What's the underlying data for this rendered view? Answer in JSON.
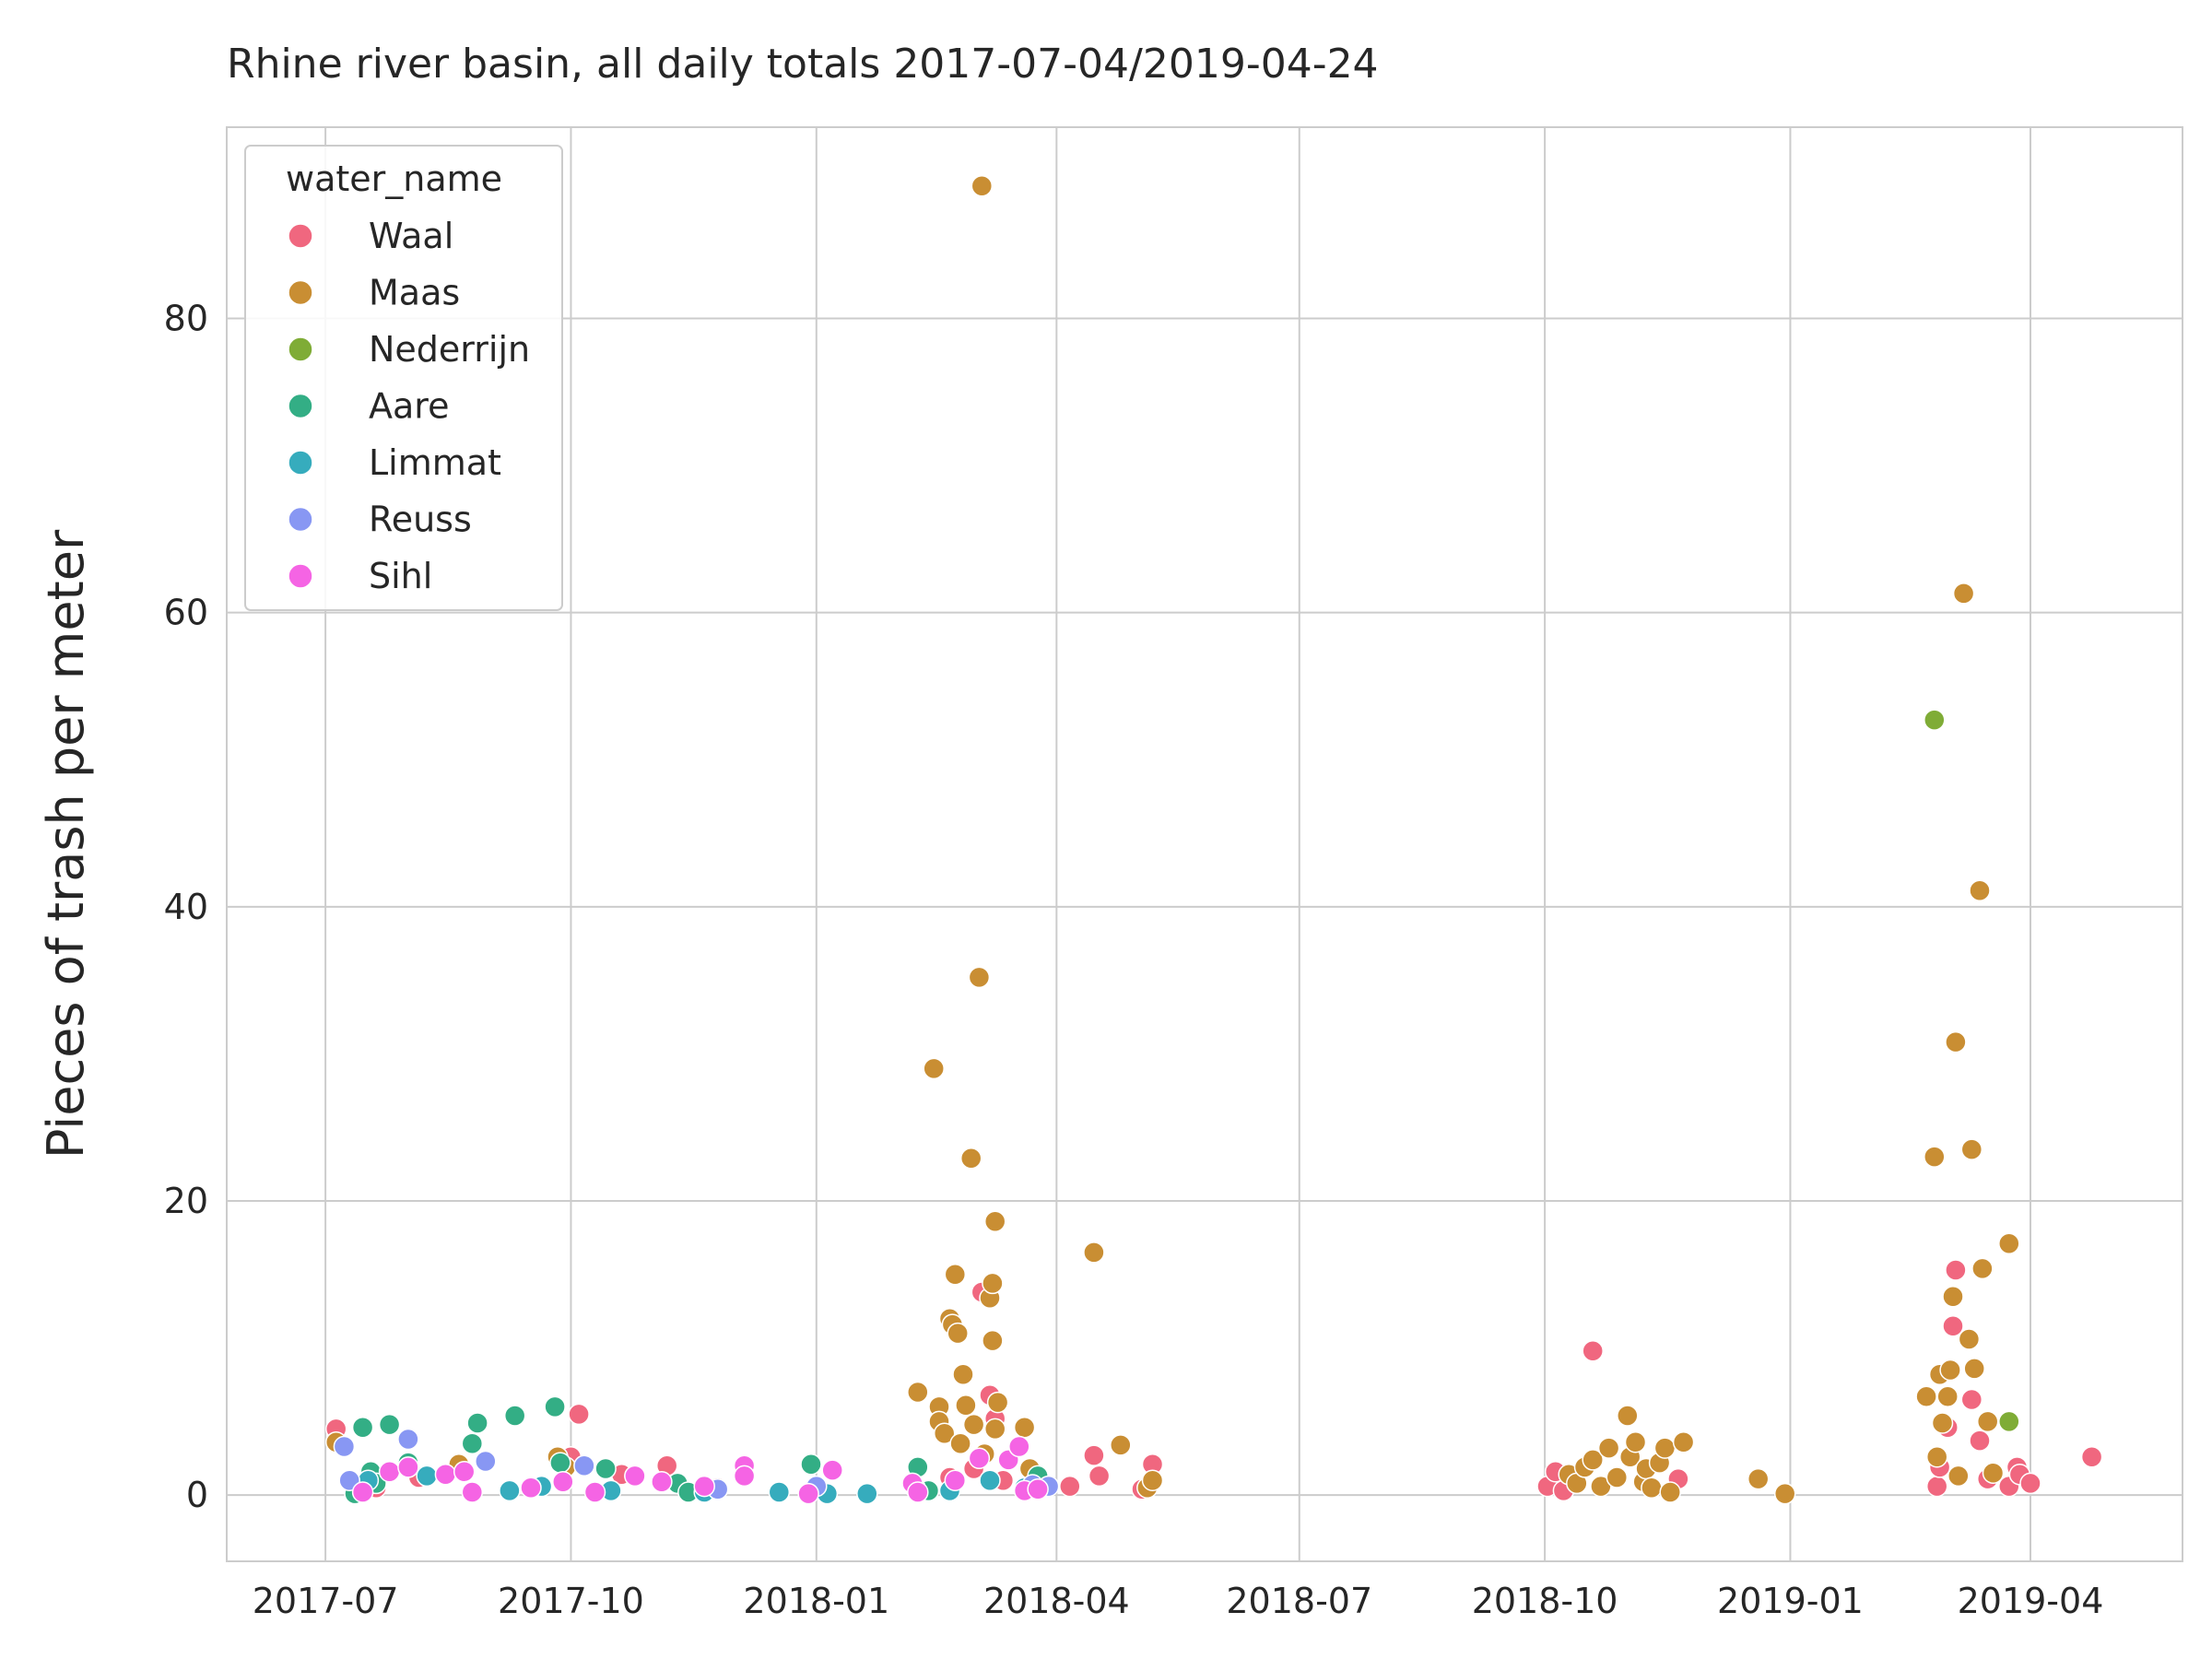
{
  "chart_data": {
    "type": "scatter",
    "title": "Rhine river basin, all daily totals 2017-07-04/2019-04-24",
    "xlabel": "",
    "ylabel": "Pieces of trash per meter",
    "x_scale": "date",
    "xlim": [
      "2017-05-25",
      "2019-05-28"
    ],
    "ylim": [
      -4.5,
      93
    ],
    "x_ticks": [
      "2017-07",
      "2017-10",
      "2018-01",
      "2018-04",
      "2018-07",
      "2018-10",
      "2019-01",
      "2019-04"
    ],
    "y_ticks": [
      0,
      20,
      40,
      60,
      80
    ],
    "grid": true,
    "legend": {
      "title": "water_name",
      "position": "top-left"
    },
    "series": [
      {
        "name": "Waal",
        "color": "#f0677f",
        "points": [
          [
            "2017-07-05",
            4.5
          ],
          [
            "2017-07-20",
            0.5
          ],
          [
            "2017-08-05",
            1.2
          ],
          [
            "2017-10-01",
            2.6
          ],
          [
            "2017-10-04",
            5.5
          ],
          [
            "2017-10-20",
            1.4
          ],
          [
            "2017-11-06",
            2.0
          ],
          [
            "2017-11-25",
            0.5
          ],
          [
            "2018-02-20",
            1.2
          ],
          [
            "2018-03-01",
            1.8
          ],
          [
            "2018-03-04",
            13.8
          ],
          [
            "2018-03-07",
            6.8
          ],
          [
            "2018-03-09",
            5.2
          ],
          [
            "2018-03-12",
            1.0
          ],
          [
            "2018-04-06",
            0.6
          ],
          [
            "2018-04-15",
            2.7
          ],
          [
            "2018-04-17",
            1.3
          ],
          [
            "2018-05-03",
            0.4
          ],
          [
            "2018-05-07",
            2.1
          ],
          [
            "2018-10-02",
            0.6
          ],
          [
            "2018-10-05",
            1.6
          ],
          [
            "2018-10-08",
            0.3
          ],
          [
            "2018-10-19",
            9.8
          ],
          [
            "2018-11-20",
            1.1
          ],
          [
            "2019-02-25",
            0.6
          ],
          [
            "2019-02-26",
            1.9
          ],
          [
            "2019-03-01",
            4.6
          ],
          [
            "2019-03-03",
            11.5
          ],
          [
            "2019-03-04",
            15.3
          ],
          [
            "2019-03-10",
            6.5
          ],
          [
            "2019-03-13",
            3.7
          ],
          [
            "2019-03-16",
            1.1
          ],
          [
            "2019-03-24",
            0.6
          ],
          [
            "2019-03-27",
            1.9
          ],
          [
            "2019-03-28",
            1.4
          ],
          [
            "2019-04-01",
            0.8
          ],
          [
            "2019-04-24",
            2.6
          ]
        ]
      },
      {
        "name": "Maas",
        "color": "#c98e33",
        "points": [
          [
            "2017-07-05",
            3.6
          ],
          [
            "2017-08-20",
            2.1
          ],
          [
            "2017-09-26",
            2.6
          ],
          [
            "2017-09-29",
            1.9
          ],
          [
            "2018-02-08",
            7.0
          ],
          [
            "2018-02-14",
            29.0
          ],
          [
            "2018-02-16",
            6.0
          ],
          [
            "2018-02-16",
            5.0
          ],
          [
            "2018-02-18",
            4.2
          ],
          [
            "2018-02-20",
            12.0
          ],
          [
            "2018-02-21",
            11.6
          ],
          [
            "2018-02-22",
            15.0
          ],
          [
            "2018-02-23",
            11.0
          ],
          [
            "2018-02-24",
            3.5
          ],
          [
            "2018-02-25",
            8.2
          ],
          [
            "2018-02-26",
            6.1
          ],
          [
            "2018-02-28",
            22.9
          ],
          [
            "2018-03-01",
            4.8
          ],
          [
            "2018-03-03",
            35.2
          ],
          [
            "2018-03-04",
            89.0
          ],
          [
            "2018-03-05",
            2.8
          ],
          [
            "2018-03-07",
            13.4
          ],
          [
            "2018-03-08",
            14.4
          ],
          [
            "2018-03-08",
            10.5
          ],
          [
            "2018-03-09",
            18.6
          ],
          [
            "2018-03-09",
            4.5
          ],
          [
            "2018-03-10",
            6.3
          ],
          [
            "2018-03-20",
            4.6
          ],
          [
            "2018-03-22",
            1.8
          ],
          [
            "2018-04-15",
            16.5
          ],
          [
            "2018-04-25",
            3.4
          ],
          [
            "2018-05-05",
            0.5
          ],
          [
            "2018-05-07",
            1.0
          ],
          [
            "2018-10-10",
            1.4
          ],
          [
            "2018-10-13",
            0.8
          ],
          [
            "2018-10-16",
            1.9
          ],
          [
            "2018-10-19",
            2.4
          ],
          [
            "2018-10-22",
            0.6
          ],
          [
            "2018-10-25",
            3.2
          ],
          [
            "2018-10-28",
            1.2
          ],
          [
            "2018-11-01",
            5.4
          ],
          [
            "2018-11-02",
            2.6
          ],
          [
            "2018-11-04",
            3.6
          ],
          [
            "2018-11-07",
            0.9
          ],
          [
            "2018-11-08",
            1.8
          ],
          [
            "2018-11-10",
            0.5
          ],
          [
            "2018-11-13",
            2.2
          ],
          [
            "2018-11-15",
            3.2
          ],
          [
            "2018-11-17",
            0.2
          ],
          [
            "2018-11-22",
            3.6
          ],
          [
            "2018-12-20",
            1.1
          ],
          [
            "2018-12-30",
            0.1
          ],
          [
            "2019-02-21",
            6.7
          ],
          [
            "2019-02-24",
            23.0
          ],
          [
            "2019-02-25",
            2.6
          ],
          [
            "2019-02-26",
            8.2
          ],
          [
            "2019-02-27",
            4.9
          ],
          [
            "2019-03-01",
            6.7
          ],
          [
            "2019-03-02",
            8.5
          ],
          [
            "2019-03-03",
            13.5
          ],
          [
            "2019-03-04",
            30.8
          ],
          [
            "2019-03-05",
            1.3
          ],
          [
            "2019-03-07",
            61.3
          ],
          [
            "2019-03-09",
            10.6
          ],
          [
            "2019-03-10",
            23.5
          ],
          [
            "2019-03-11",
            8.6
          ],
          [
            "2019-03-13",
            41.1
          ],
          [
            "2019-03-14",
            15.4
          ],
          [
            "2019-03-16",
            5.0
          ],
          [
            "2019-03-18",
            1.5
          ],
          [
            "2019-03-24",
            17.1
          ]
        ]
      },
      {
        "name": "Nederrijn",
        "color": "#7fac36",
        "points": [
          [
            "2019-02-24",
            52.7
          ],
          [
            "2019-03-24",
            5.0
          ]
        ]
      },
      {
        "name": "Aare",
        "color": "#33ae85",
        "points": [
          [
            "2017-07-12",
            0.1
          ],
          [
            "2017-07-15",
            4.6
          ],
          [
            "2017-07-18",
            1.6
          ],
          [
            "2017-07-20",
            0.8
          ],
          [
            "2017-07-25",
            4.8
          ],
          [
            "2017-08-01",
            2.2
          ],
          [
            "2017-08-25",
            3.5
          ],
          [
            "2017-08-27",
            4.9
          ],
          [
            "2017-09-10",
            5.4
          ],
          [
            "2017-09-25",
            6.0
          ],
          [
            "2017-09-27",
            2.2
          ],
          [
            "2017-10-14",
            1.8
          ],
          [
            "2017-10-25",
            1.3
          ],
          [
            "2017-11-10",
            0.8
          ],
          [
            "2017-11-14",
            0.2
          ],
          [
            "2017-12-30",
            2.1
          ],
          [
            "2018-02-08",
            1.9
          ],
          [
            "2018-02-12",
            0.3
          ],
          [
            "2018-03-25",
            1.3
          ]
        ]
      },
      {
        "name": "Limmat",
        "color": "#36acbd",
        "points": [
          [
            "2017-07-17",
            1.0
          ],
          [
            "2017-08-08",
            1.3
          ],
          [
            "2017-09-08",
            0.3
          ],
          [
            "2017-09-20",
            0.6
          ],
          [
            "2017-10-16",
            0.3
          ],
          [
            "2017-11-20",
            0.2
          ],
          [
            "2017-12-18",
            0.2
          ],
          [
            "2018-01-05",
            0.1
          ],
          [
            "2018-01-20",
            0.1
          ],
          [
            "2018-02-07",
            0.5
          ],
          [
            "2018-02-20",
            0.3
          ],
          [
            "2018-03-07",
            1.0
          ],
          [
            "2018-03-20",
            0.5
          ]
        ]
      },
      {
        "name": "Reuss",
        "color": "#8897f3",
        "points": [
          [
            "2017-07-08",
            3.3
          ],
          [
            "2017-07-10",
            1.0
          ],
          [
            "2017-08-01",
            3.8
          ],
          [
            "2017-08-30",
            2.3
          ],
          [
            "2017-10-06",
            2.0
          ],
          [
            "2017-11-25",
            0.4
          ],
          [
            "2018-01-01",
            0.6
          ],
          [
            "2018-03-23",
            0.7
          ],
          [
            "2018-03-29",
            0.6
          ]
        ]
      },
      {
        "name": "Sihl",
        "color": "#f564e4",
        "points": [
          [
            "2017-07-15",
            0.2
          ],
          [
            "2017-07-25",
            1.6
          ],
          [
            "2017-08-01",
            1.9
          ],
          [
            "2017-08-15",
            1.4
          ],
          [
            "2017-08-22",
            1.6
          ],
          [
            "2017-08-25",
            0.2
          ],
          [
            "2017-09-16",
            0.5
          ],
          [
            "2017-09-28",
            0.9
          ],
          [
            "2017-10-10",
            0.2
          ],
          [
            "2017-10-25",
            1.3
          ],
          [
            "2017-11-04",
            0.9
          ],
          [
            "2017-11-20",
            0.6
          ],
          [
            "2017-12-05",
            2.0
          ],
          [
            "2017-12-05",
            1.3
          ],
          [
            "2017-12-29",
            0.1
          ],
          [
            "2018-01-07",
            1.7
          ],
          [
            "2018-02-06",
            0.8
          ],
          [
            "2018-02-08",
            0.2
          ],
          [
            "2018-02-22",
            1.0
          ],
          [
            "2018-03-03",
            2.5
          ],
          [
            "2018-03-14",
            2.4
          ],
          [
            "2018-03-18",
            3.3
          ],
          [
            "2018-03-20",
            0.3
          ],
          [
            "2018-03-25",
            0.4
          ]
        ]
      }
    ]
  }
}
